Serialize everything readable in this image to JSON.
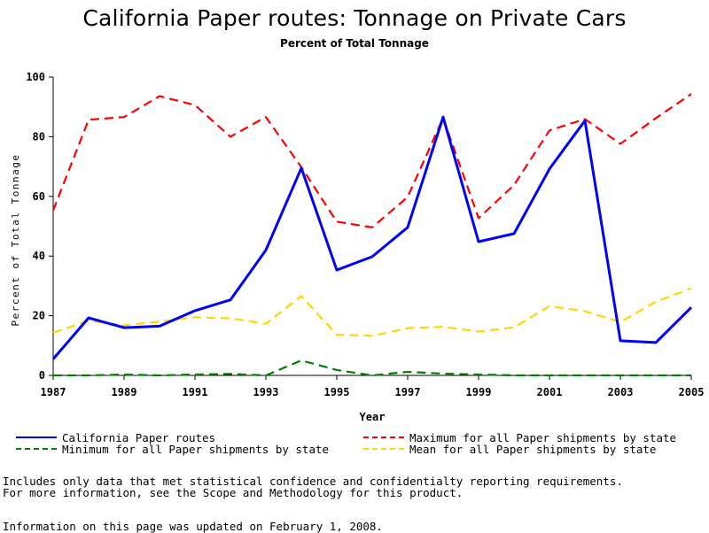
{
  "chart_data": {
    "type": "line",
    "title": "California Paper routes: Tonnage on Private Cars",
    "subtitle": "Percent of Total Tonnage",
    "xlabel": "Year",
    "ylabel": "Percent of Total Tonnage",
    "xlim": [
      1987,
      2005
    ],
    "ylim": [
      0,
      100
    ],
    "x_ticks": [
      "1987",
      "1989",
      "1991",
      "1993",
      "1995",
      "1997",
      "1999",
      "2001",
      "2003",
      "2005"
    ],
    "y_ticks": [
      "0",
      "20",
      "40",
      "60",
      "80",
      "100"
    ],
    "x": [
      1987,
      1988,
      1989,
      1990,
      1991,
      1992,
      1993,
      1994,
      1995,
      1996,
      1997,
      1998,
      1999,
      2000,
      2001,
      2002,
      2003,
      2004,
      2005
    ],
    "series": [
      {
        "name": "California Paper routes",
        "color": "#0000ff",
        "style": "solid",
        "values": [
          5.5,
          19.3,
          16,
          16.5,
          21.7,
          25.3,
          42,
          69.5,
          35.3,
          39.8,
          49.6,
          86.6,
          44.8,
          47.5,
          69.2,
          85.4,
          11.6,
          11,
          22.8
        ]
      },
      {
        "name": "Minimum for all Paper shipments by state",
        "color": "#008000",
        "style": "dashed",
        "values": [
          0,
          0,
          0.3,
          0,
          0.3,
          0.5,
          0,
          5,
          1.8,
          0,
          1.2,
          0.6,
          0.3,
          0,
          0,
          0,
          0,
          0,
          0
        ]
      },
      {
        "name": "Maximum for all Paper shipments by state",
        "color": "#ff0000",
        "style": "dashed",
        "values": [
          55.3,
          85.7,
          86.6,
          93.6,
          90.6,
          80,
          86.6,
          69.8,
          51.5,
          49.6,
          59.8,
          86.3,
          52.7,
          63.8,
          82.1,
          85.9,
          77.6,
          86.2,
          94.3
        ]
      },
      {
        "name": "Mean for all Paper shipments by state",
        "color": "#ffd700",
        "style": "dashed",
        "values": [
          14.3,
          18.3,
          16.8,
          18,
          19.5,
          19.1,
          17.3,
          26.6,
          13.6,
          13.3,
          15.8,
          16.3,
          14.7,
          16.1,
          23.2,
          21.5,
          17.9,
          24.7,
          29.2
        ]
      }
    ]
  },
  "legend": [
    {
      "label": "California Paper routes",
      "color": "#0000ff",
      "style": "solid"
    },
    {
      "label": "Maximum for all Paper shipments by state",
      "color": "#ff0000",
      "style": "dashed"
    },
    {
      "label": "Minimum for all Paper shipments by state",
      "color": "#008000",
      "style": "dashed"
    },
    {
      "label": "Mean for all Paper shipments by state",
      "color": "#ffd700",
      "style": "dashed"
    }
  ],
  "notes": {
    "line1": "Includes only data that met statistical confidence and confidentialty reporting requirements.",
    "line2": "For more information, see the Scope and Methodology for this product.",
    "updated": "Information on this page was updated on February 1, 2008."
  }
}
